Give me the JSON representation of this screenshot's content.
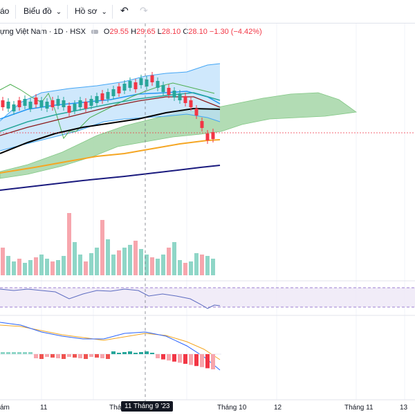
{
  "toolbar": {
    "item1": "áo",
    "chart_label": "Biểu đồ",
    "profile_label": "Hồ sơ",
    "undo_icon": "undo-icon",
    "redo_icon": "redo-icon"
  },
  "legend": {
    "symbol": "ựng Việt Nam · 1D · HSX",
    "o_label": "O",
    "o_val": "29.55",
    "h_label": "H",
    "h_val": "29.65",
    "l_label": "L",
    "l_val": "28.10",
    "c_label": "C",
    "c_val": "28.10",
    "change": "−1.30 (−4.42%)"
  },
  "xaxis": {
    "labels": [
      "ám",
      "11",
      "Thán",
      "Tháng 10",
      "12",
      "Tháng 11",
      "13"
    ],
    "crosshair": "11 Tháng 9 '23"
  },
  "colors": {
    "up": "#26a69a",
    "down": "#f23645",
    "up_volume": "#8fd6c7",
    "down_volume": "#f7a6ad",
    "bollinger": "#2196f3",
    "ma_orange": "#f5a623",
    "ma_navy": "#1a1a7e",
    "ichimoku_cloud": "#8cc98a"
  }
}
